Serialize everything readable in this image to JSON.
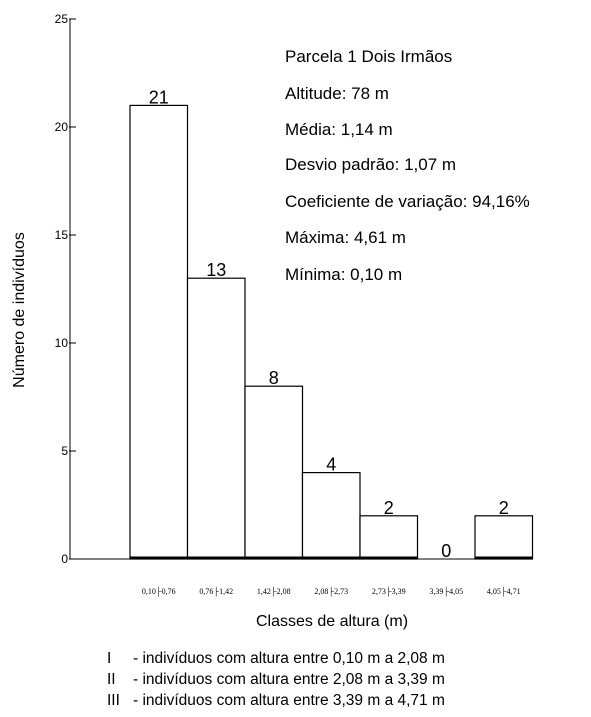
{
  "chart_data": {
    "type": "bar",
    "title": "",
    "xlabel": "Classes de altura (m)",
    "ylabel": "Número de indivíduos",
    "ylim": [
      0,
      25
    ],
    "yticks": [
      0,
      5,
      10,
      15,
      20,
      25
    ],
    "categories": [
      "0,10├0,76",
      "0,76├1,42",
      "1,42├2,08",
      "2,08├2,73",
      "2,73├3,39",
      "3,39├4,05",
      "4,05├4,71"
    ],
    "values": [
      21,
      13,
      8,
      4,
      2,
      0,
      2
    ],
    "grid": false,
    "legend": "none"
  },
  "stats": [
    "Parcela 1 Dois Irmãos",
    "Altitude: 78 m",
    "Média: 1,14 m",
    "Desvio padrão: 1,07 m",
    "Coeficiente de variação: 94,16%",
    "Máxima: 4,61 m",
    "Mínima: 0,10 m"
  ],
  "notes": [
    {
      "roman": "I",
      "text": "- indivíduos com altura entre 0,10 m a 2,08 m"
    },
    {
      "roman": "II",
      "text": "- indivíduos com altura entre 2,08 m a 3,39 m"
    },
    {
      "roman": "III",
      "text": "- indivíduos com altura entre 3,39 m a 4,71 m"
    }
  ]
}
